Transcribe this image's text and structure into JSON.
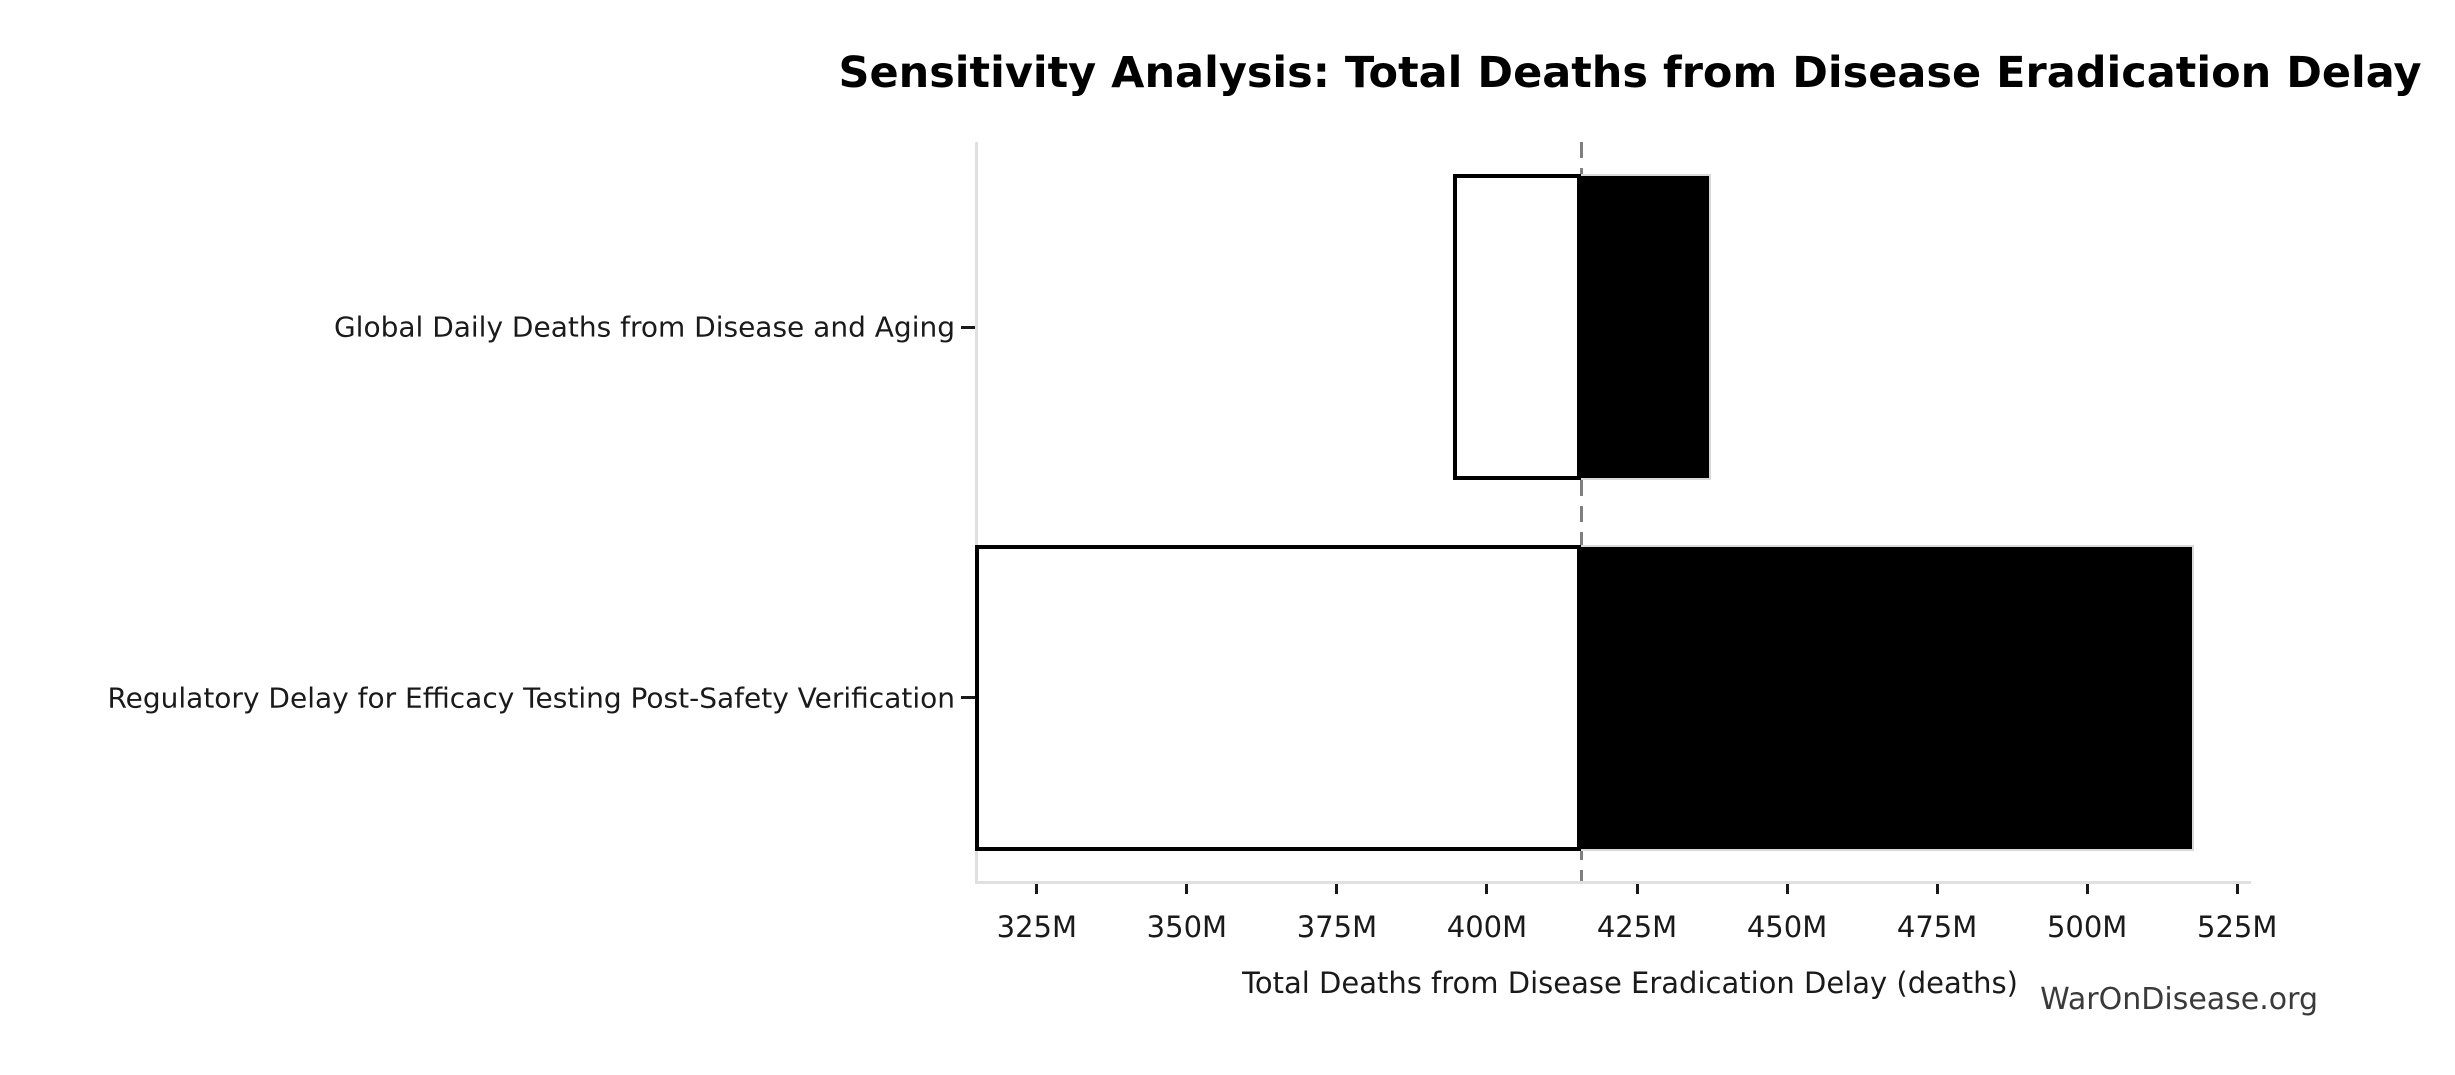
{
  "page": {
    "background_color": "#ffffff"
  },
  "chart_data": {
    "type": "bar",
    "subtype": "tornado-sensitivity",
    "orientation": "horizontal",
    "title": "Sensitivity Analysis: Total Deaths from Disease Eradication Delay",
    "xlabel": "Total Deaths from Disease Eradication Delay (deaths)",
    "watermark": "WarOnDisease.org",
    "grid": false,
    "legend": null,
    "xlim": [
      314.7,
      527.3
    ],
    "x_unit": "M",
    "baseline_value": 415.7,
    "x_ticks": [
      {
        "value": 325,
        "label": "325M"
      },
      {
        "value": 350,
        "label": "350M"
      },
      {
        "value": 375,
        "label": "375M"
      },
      {
        "value": 400,
        "label": "400M"
      },
      {
        "value": 425,
        "label": "425M"
      },
      {
        "value": 450,
        "label": "450M"
      },
      {
        "value": 475,
        "label": "475M"
      },
      {
        "value": 500,
        "label": "500M"
      },
      {
        "value": 525,
        "label": "525M"
      }
    ],
    "parameters": [
      {
        "label": "Global Daily Deaths from Disease and Aging",
        "low": 394.7,
        "high": 437.0
      },
      {
        "label": "Regulatory Delay for Efficacy Testing Post-Safety Verification",
        "low": 315.0,
        "high": 517.5
      }
    ],
    "colors": {
      "low_segment_fill": "#ffffff",
      "low_segment_edge": "#000000",
      "high_segment_fill": "#000000",
      "baseline_line": "#7f7f7f",
      "spine": "#e0e0e0",
      "text": "#1a1a1a",
      "watermark_text": "#3a3a3a"
    }
  }
}
